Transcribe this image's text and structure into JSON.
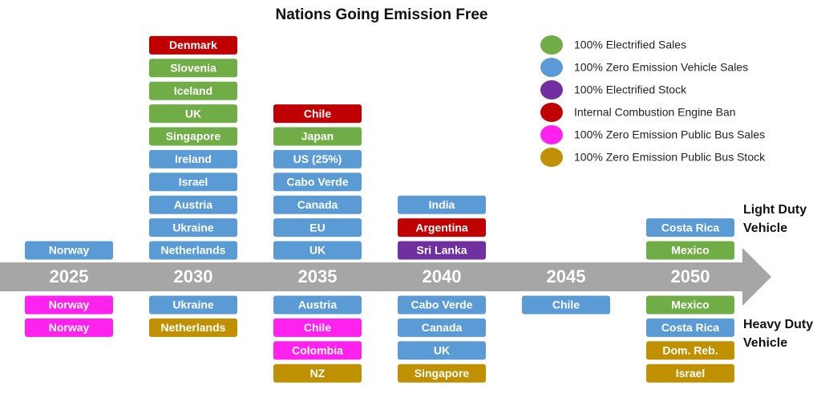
{
  "title": "Nations Going Emission Free",
  "legend": [
    {
      "label": "100% Electrified Sales",
      "color": "#70ad47"
    },
    {
      "label": "100% Zero Emission Vehicle Sales",
      "color": "#5b9bd5"
    },
    {
      "label": "100% Electrified Stock",
      "color": "#7030a0"
    },
    {
      "label": "Internal Combustion Engine Ban",
      "color": "#c00000"
    },
    {
      "label": "100% Zero Emission Public Bus Sales",
      "color": "#ff22ee"
    },
    {
      "label": "100% Zero Emission Public Bus Stock",
      "color": "#bf9000"
    }
  ],
  "light_duty_label": [
    "Light Duty",
    "Vehicle"
  ],
  "heavy_duty_label": [
    "Heavy Duty",
    "Vehicle"
  ],
  "columns": [
    {
      "year": "2025",
      "light_duty": [
        {
          "label": "Norway",
          "color": "#5b9bd5"
        }
      ],
      "heavy_duty": [
        {
          "label": "Norway",
          "color": "#ff22ee"
        },
        {
          "label": "Norway",
          "color": "#ff22ee"
        }
      ]
    },
    {
      "year": "2030",
      "light_duty": [
        {
          "label": "Denmark",
          "color": "#c00000"
        },
        {
          "label": "Slovenia",
          "color": "#70ad47"
        },
        {
          "label": "Iceland",
          "color": "#70ad47"
        },
        {
          "label": "UK",
          "color": "#70ad47"
        },
        {
          "label": "Singapore",
          "color": "#70ad47"
        },
        {
          "label": "Ireland",
          "color": "#5b9bd5"
        },
        {
          "label": "Israel",
          "color": "#5b9bd5"
        },
        {
          "label": "Austria",
          "color": "#5b9bd5"
        },
        {
          "label": "Ukraine",
          "color": "#5b9bd5"
        },
        {
          "label": "Netherlands",
          "color": "#5b9bd5"
        }
      ],
      "heavy_duty": [
        {
          "label": "Ukraine",
          "color": "#5b9bd5"
        },
        {
          "label": "Netherlands",
          "color": "#bf9000"
        }
      ]
    },
    {
      "year": "2035",
      "light_duty": [
        {
          "label": "Chile",
          "color": "#c00000"
        },
        {
          "label": "Japan",
          "color": "#70ad47"
        },
        {
          "label": "US (25%)",
          "color": "#5b9bd5"
        },
        {
          "label": "Cabo Verde",
          "color": "#5b9bd5"
        },
        {
          "label": "Canada",
          "color": "#5b9bd5"
        },
        {
          "label": "EU",
          "color": "#5b9bd5"
        },
        {
          "label": "UK",
          "color": "#5b9bd5"
        }
      ],
      "heavy_duty": [
        {
          "label": "Austria",
          "color": "#5b9bd5"
        },
        {
          "label": "Chile",
          "color": "#ff22ee"
        },
        {
          "label": "Colombia",
          "color": "#ff22ee"
        },
        {
          "label": "NZ",
          "color": "#bf9000"
        }
      ]
    },
    {
      "year": "2040",
      "light_duty": [
        {
          "label": "India",
          "color": "#5b9bd5"
        },
        {
          "label": "Argentina",
          "color": "#c00000"
        },
        {
          "label": "Sri Lanka",
          "color": "#7030a0"
        }
      ],
      "heavy_duty": [
        {
          "label": "Cabo Verde",
          "color": "#5b9bd5"
        },
        {
          "label": "Canada",
          "color": "#5b9bd5"
        },
        {
          "label": "UK",
          "color": "#5b9bd5"
        },
        {
          "label": "Singapore",
          "color": "#bf9000"
        }
      ]
    },
    {
      "year": "2045",
      "light_duty": [],
      "heavy_duty": [
        {
          "label": "Chile",
          "color": "#5b9bd5"
        }
      ]
    },
    {
      "year": "2050",
      "light_duty": [
        {
          "label": "Costa Rica",
          "color": "#5b9bd5"
        },
        {
          "label": "Mexico",
          "color": "#70ad47"
        }
      ],
      "heavy_duty": [
        {
          "label": "Mexico",
          "color": "#70ad47"
        },
        {
          "label": "Costa Rica",
          "color": "#5b9bd5"
        },
        {
          "label": "Dom. Reb.",
          "color": "#bf9000"
        },
        {
          "label": "Israel",
          "color": "#bf9000"
        }
      ]
    }
  ]
}
